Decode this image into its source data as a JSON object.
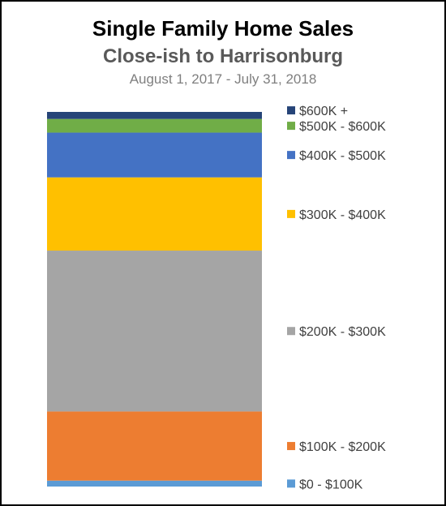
{
  "chart_data": {
    "type": "bar",
    "stacked": true,
    "title": "Single Family Home Sales",
    "subtitle": "Close-ish to Harrisonburg",
    "date_range": "August 1, 2017 - July 31, 2018",
    "legend_position": "right",
    "grid": false,
    "ylim": [
      0,
      100
    ],
    "unit": "percent of sales",
    "series": [
      {
        "name": "$0 - $100K",
        "value": 1.6,
        "color": "#5B9BD5"
      },
      {
        "name": "$100K - $200K",
        "value": 18.7,
        "color": "#ED7D31"
      },
      {
        "name": "$200K - $300K",
        "value": 43.5,
        "color": "#A5A5A5"
      },
      {
        "name": "$300K - $400K",
        "value": 19.8,
        "color": "#FFC000"
      },
      {
        "name": "$400K - $500K",
        "value": 12.1,
        "color": "#4472C4"
      },
      {
        "name": "$500K - $600K",
        "value": 3.7,
        "color": "#70AD47"
      },
      {
        "name": "$600K +",
        "value": 1.9,
        "color": "#264478"
      }
    ]
  }
}
